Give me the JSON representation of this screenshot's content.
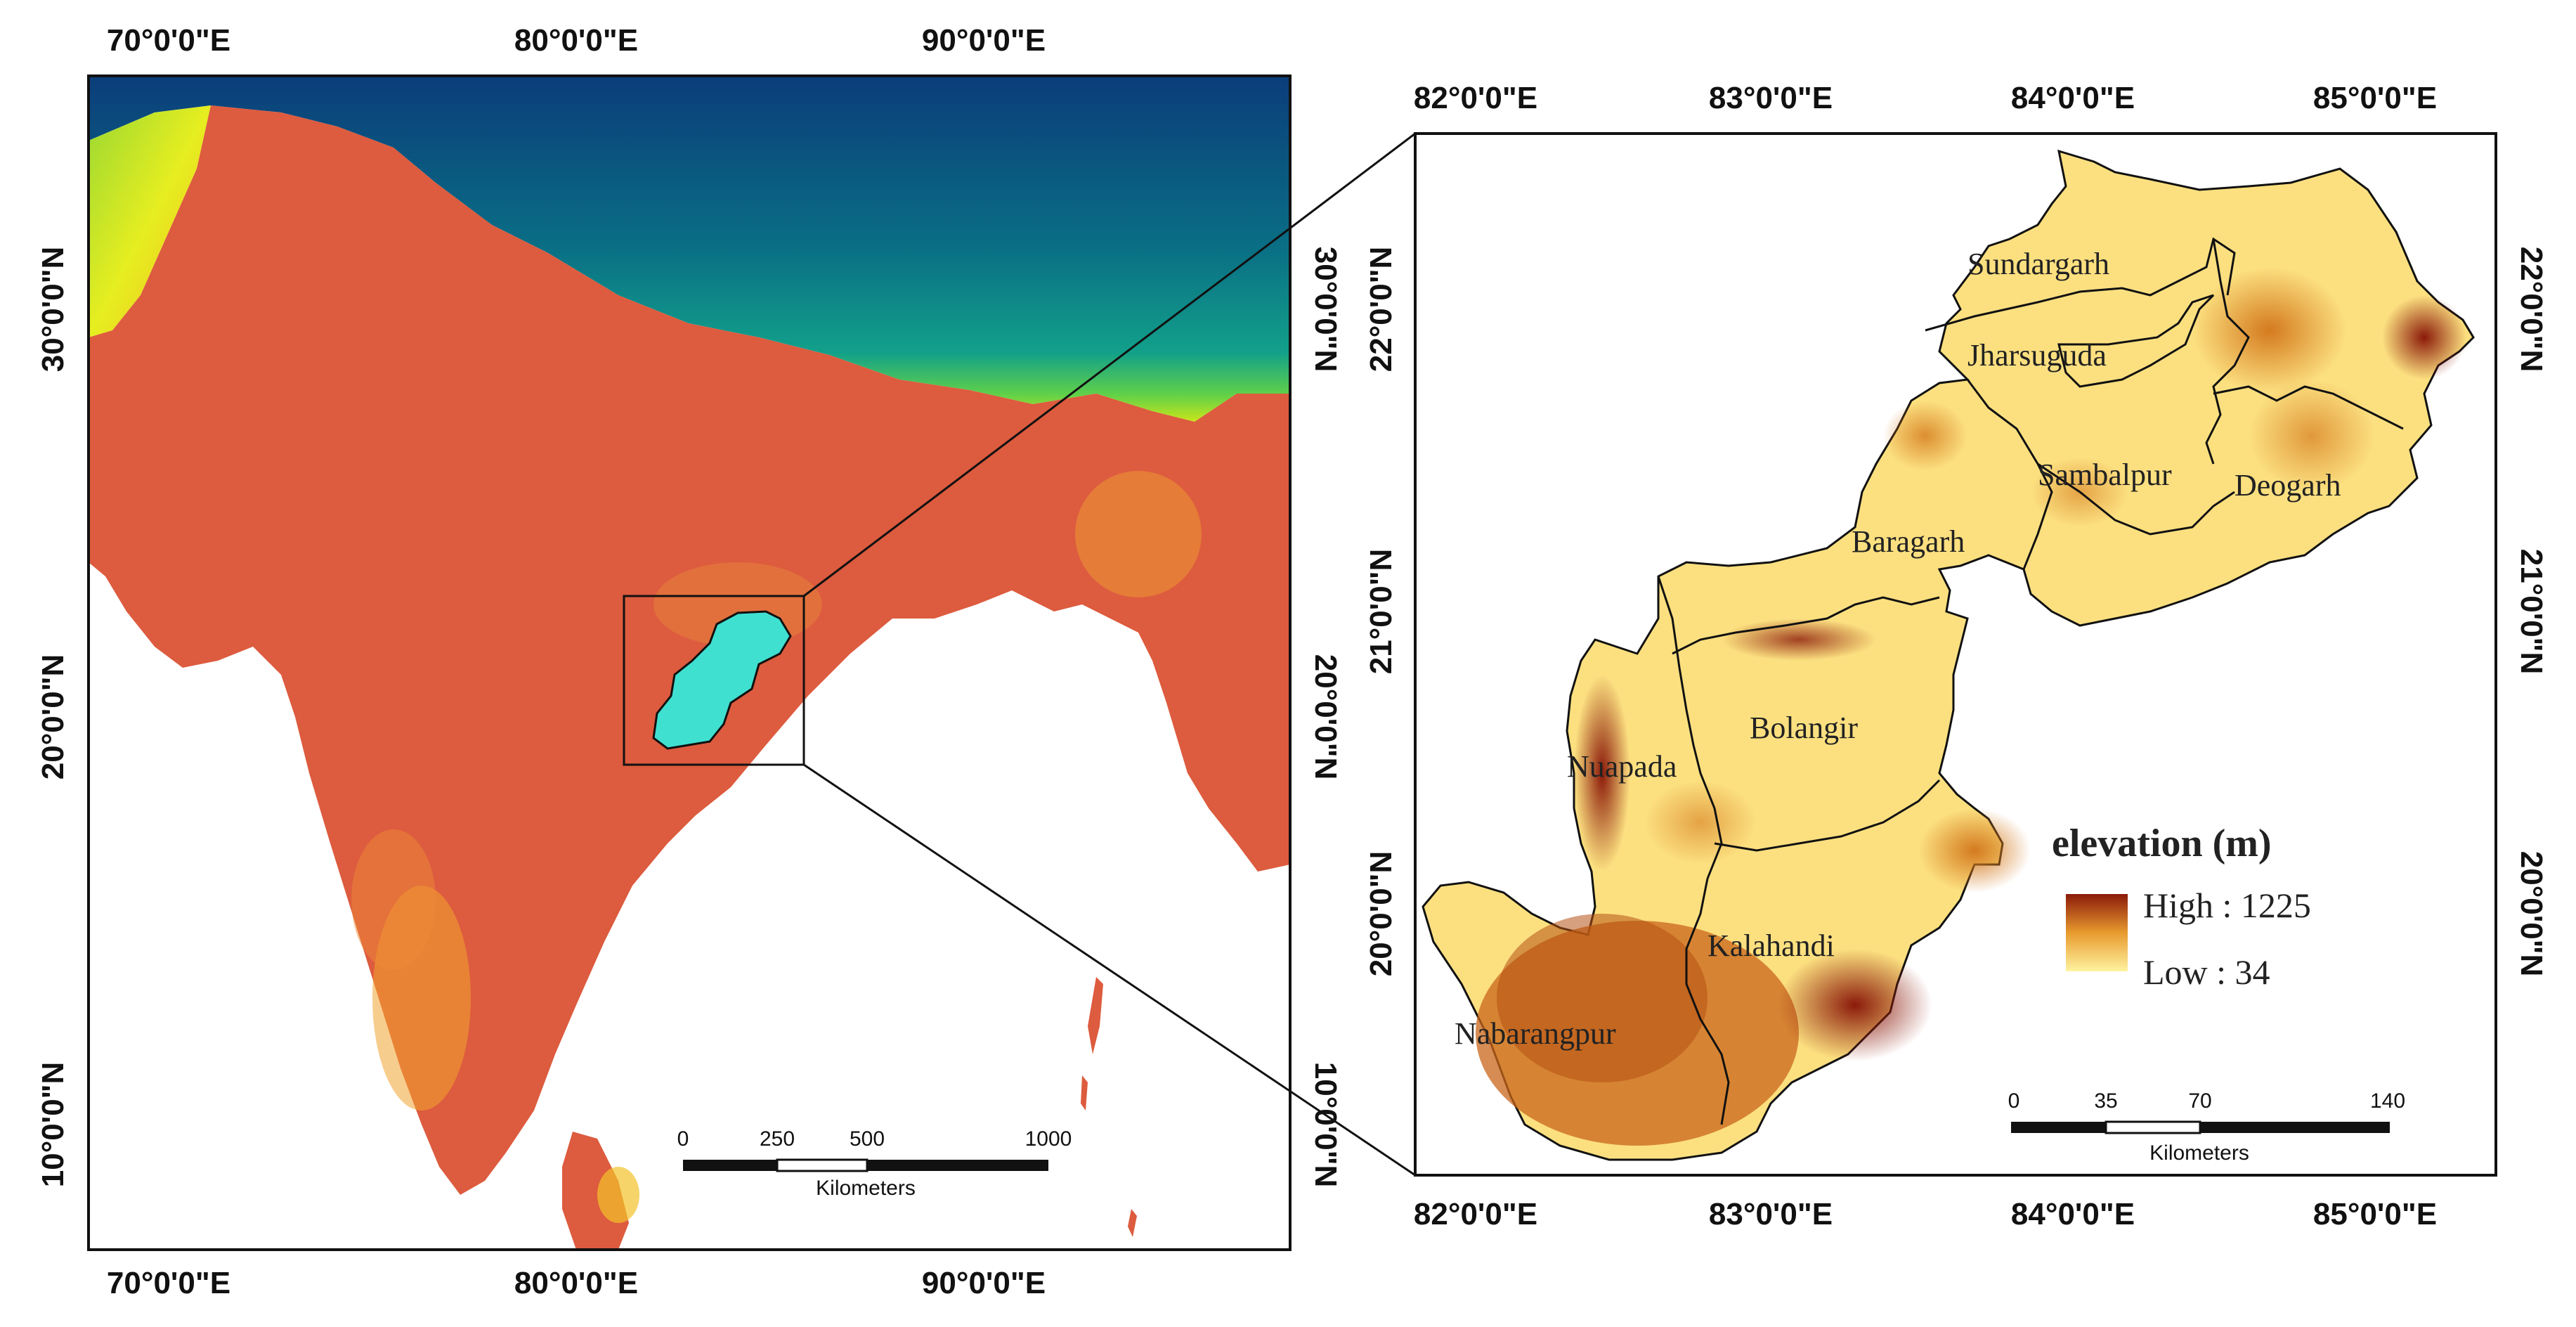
{
  "left_map": {
    "lon_labels": [
      "70°0'0\"E",
      "80°0'0\"E",
      "90°0'0\"E"
    ],
    "lat_labels": [
      "30°0'0\"N",
      "20°0'0\"N",
      "10°0'0\"N"
    ],
    "scale_bar": {
      "ticks": [
        "0",
        "250",
        "500",
        "1000"
      ],
      "unit": "Kilometers"
    }
  },
  "right_map": {
    "lon_labels": [
      "82°0'0\"E",
      "83°0'0\"E",
      "84°0'0\"E",
      "85°0'0\"E"
    ],
    "lat_labels": [
      "22°0'0\"N",
      "21°0'0\"N",
      "20°0'0\"N"
    ],
    "districts": [
      "Sundargarh",
      "Jharsuguda",
      "Sambalpur",
      "Deogarh",
      "Baragarh",
      "Bolangir",
      "Nuapada",
      "Kalahandi",
      "Nabarangpur"
    ],
    "legend": {
      "title": "elevation (m)",
      "high": "High : 1225",
      "low": "Low : 34",
      "colors": {
        "high": "#8b1a0a",
        "mid": "#e89a2e",
        "low": "#fff3a0"
      }
    },
    "scale_bar": {
      "ticks": [
        "0",
        "35",
        "70",
        "140"
      ],
      "unit": "Kilometers"
    }
  },
  "colors": {
    "plains": "#dd5b3e",
    "highlight_region": "#40e0d0",
    "mountains_dark": "#0b3d7a",
    "mountains_mid": "#0a8a8a"
  }
}
